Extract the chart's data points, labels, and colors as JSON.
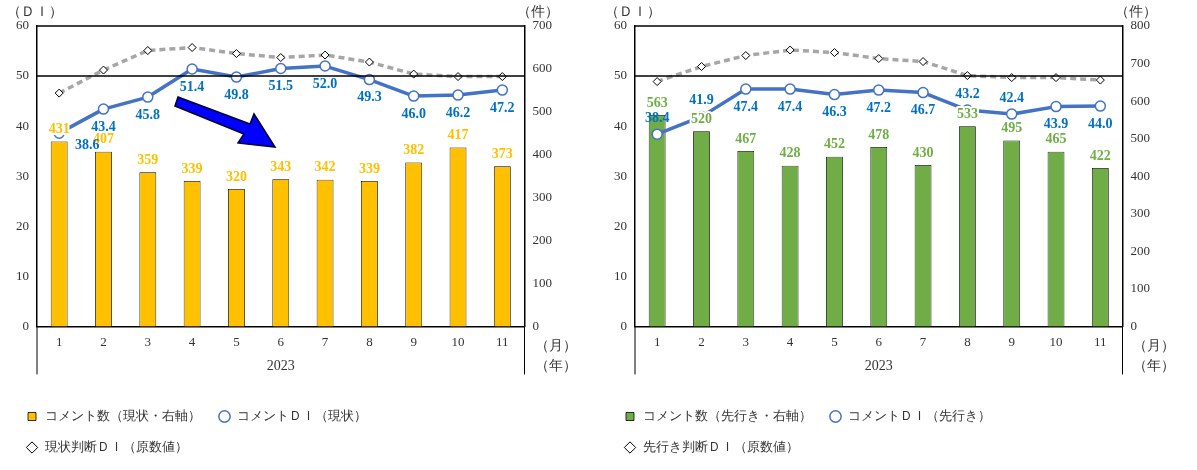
{
  "chart_data": [
    {
      "type": "bar",
      "ylabel": "（ＤＩ）",
      "y2label": "（件）",
      "xlabel": "2023",
      "categories": [
        "1",
        "2",
        "3",
        "4",
        "5",
        "6",
        "7",
        "8",
        "9",
        "10",
        "11"
      ],
      "ylim": [
        0,
        60
      ],
      "yticks": [
        0,
        10,
        20,
        30,
        40,
        50,
        60
      ],
      "y2lim": [
        0,
        700
      ],
      "y2ticks": [
        0,
        100,
        200,
        300,
        400,
        500,
        600,
        700
      ],
      "series": [
        {
          "name": "コメント数（現状・右軸）",
          "axis": "y2",
          "color": "#ffc000",
          "values": [
            431,
            407,
            359,
            339,
            320,
            343,
            342,
            339,
            382,
            417,
            373
          ],
          "value_labels": [
            "431",
            "407",
            "359",
            "339",
            "320",
            "343",
            "342",
            "339",
            "382",
            "417",
            "373"
          ]
        },
        {
          "name": "コメントＤＩ（現状）",
          "type": "line",
          "color": "#4472c4",
          "marker": "circle",
          "line_style": "solid",
          "values": [
            38.6,
            43.4,
            45.8,
            51.4,
            49.8,
            51.5,
            52.0,
            49.3,
            46.0,
            46.2,
            47.2
          ],
          "value_labels": [
            "38.6",
            "43.4",
            "45.8",
            "51.4",
            "49.8",
            "51.5",
            "52.0",
            "49.3",
            "46.0",
            "46.2",
            "47.2"
          ]
        },
        {
          "name": "現状判断ＤＩ（原数値）",
          "type": "line",
          "color": "#a6a6a6",
          "marker": "diamond",
          "line_style": "dashed",
          "values": [
            46.6,
            51.2,
            55.1,
            55.7,
            54.5,
            53.7,
            54.2,
            52.8,
            50.4,
            49.9,
            49.9
          ]
        }
      ],
      "ref_lines": [
        {
          "axis": "y",
          "value": 50,
          "color": "#000000"
        }
      ],
      "annotations": [
        "（月）",
        "（年）"
      ],
      "legend": "bottom",
      "grid": false
    },
    {
      "type": "bar",
      "ylabel": "（ＤＩ）",
      "y2label": "（件）",
      "xlabel": "2023",
      "categories": [
        "1",
        "2",
        "3",
        "4",
        "5",
        "6",
        "7",
        "8",
        "9",
        "10",
        "11"
      ],
      "ylim": [
        0,
        60
      ],
      "yticks": [
        0,
        10,
        20,
        30,
        40,
        50,
        60
      ],
      "y2lim": [
        0,
        800
      ],
      "y2ticks": [
        0,
        100,
        200,
        300,
        400,
        500,
        600,
        700,
        800
      ],
      "series": [
        {
          "name": "コメント数（先行き・右軸）",
          "axis": "y2",
          "color": "#70ad47",
          "values": [
            563,
            520,
            467,
            428,
            452,
            478,
            430,
            533,
            495,
            465,
            422
          ],
          "value_labels": [
            "563",
            "520",
            "467",
            "428",
            "452",
            "478",
            "430",
            "533",
            "495",
            "465",
            "422"
          ]
        },
        {
          "name": "コメントＤＩ（先行き）",
          "type": "line",
          "color": "#4472c4",
          "marker": "circle",
          "line_style": "solid",
          "values": [
            38.4,
            41.9,
            47.4,
            47.4,
            46.3,
            47.2,
            46.7,
            43.2,
            42.4,
            43.9,
            44.0
          ],
          "value_labels": [
            "38.4",
            "41.9",
            "47.4",
            "47.4",
            "46.3",
            "47.2",
            "46.7",
            "43.2",
            "42.4",
            "43.9",
            "44.0"
          ]
        },
        {
          "name": "先行き判断ＤＩ（原数値）",
          "type": "line",
          "color": "#a6a6a6",
          "marker": "diamond",
          "line_style": "dashed",
          "values": [
            48.9,
            51.9,
            54.1,
            55.2,
            54.7,
            53.5,
            52.9,
            50.1,
            49.7,
            49.7,
            49.2
          ]
        }
      ],
      "ref_lines": [
        {
          "axis": "y",
          "value": 50,
          "color": "#000000"
        }
      ],
      "annotations": [
        "（月）",
        "（年）"
      ],
      "legend": "bottom",
      "grid": false
    }
  ]
}
